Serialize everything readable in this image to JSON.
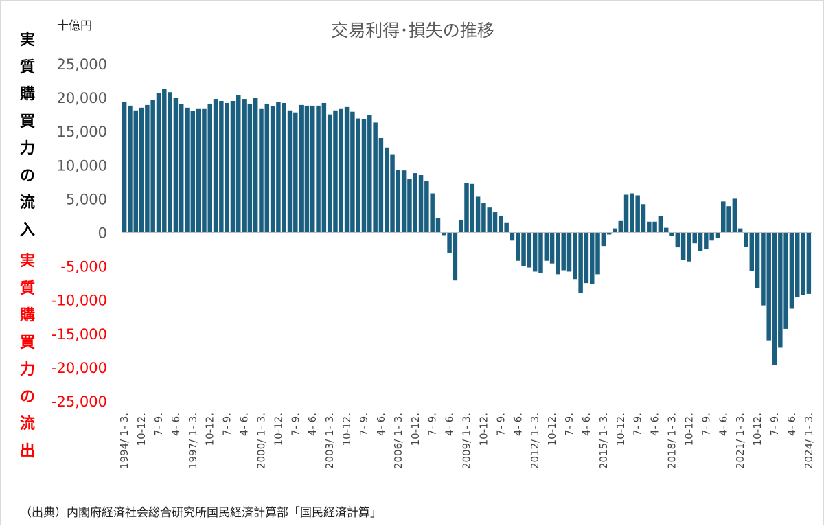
{
  "chart_data": {
    "type": "bar",
    "title": "交易利得･損失の推移",
    "unit_label": "十億円",
    "side_label_positive": [
      "実",
      "質",
      "購",
      "買",
      "力",
      "の",
      "流",
      "入"
    ],
    "side_label_negative": [
      "実",
      "質",
      "購",
      "買",
      "力",
      "の",
      "流",
      "出"
    ],
    "source": "（出典）内閣府経済社会総合研究所国民経済計算部「国民経済計算」",
    "ylim": [
      -25000,
      25000
    ],
    "yticks": [
      25000,
      20000,
      15000,
      10000,
      5000,
      0,
      -5000,
      -10000,
      -15000,
      -20000,
      -25000
    ],
    "ytick_labels": [
      "25,000",
      "20,000",
      "15,000",
      "10,000",
      "5,000",
      "0",
      "-5,000",
      "-10,000",
      "-15,000",
      "-20,000",
      "-25,000"
    ],
    "bar_color": "#1a5e80",
    "positive_tick_color": "#595959",
    "negative_tick_color": "#ff0000",
    "grid": false,
    "xtick_labels": [
      "1994/ 1- 3.",
      "10-12.",
      "7- 9.",
      "4- 6.",
      "1997/ 1- 3.",
      "10-12.",
      "7- 9.",
      "4- 6.",
      "2000/ 1- 3.",
      "10-12.",
      "7- 9.",
      "4- 6.",
      "2003/ 1- 3.",
      "10-12.",
      "7- 9.",
      "4- 6.",
      "2006/ 1- 3.",
      "10-12.",
      "7- 9.",
      "4- 6.",
      "2009/ 1- 3.",
      "10-12.",
      "7- 9.",
      "4- 6.",
      "2012/ 1- 3.",
      "10-12.",
      "7- 9.",
      "4- 6.",
      "2015/ 1- 3.",
      "10-12.",
      "7- 9.",
      "4- 6.",
      "2018/ 1- 3.",
      "10-12.",
      "7- 9.",
      "4- 6.",
      "2021/ 1- 3.",
      "10-12.",
      "7- 9.",
      "4- 6.",
      "2024/ 1- 3."
    ],
    "values": [
      19400,
      18800,
      18100,
      18500,
      18900,
      19700,
      20700,
      21300,
      20800,
      20000,
      19000,
      18500,
      18000,
      18300,
      18300,
      19100,
      19800,
      19500,
      19200,
      19500,
      20400,
      19800,
      19000,
      20000,
      18300,
      19100,
      18700,
      19300,
      19200,
      18100,
      17800,
      18900,
      18800,
      18800,
      18800,
      19200,
      17500,
      18100,
      18300,
      18600,
      17900,
      16900,
      16800,
      17400,
      16300,
      14000,
      12600,
      11600,
      9300,
      9200,
      7900,
      8800,
      8500,
      7600,
      5800,
      2100,
      -400,
      -3000,
      -7100,
      1800,
      7300,
      7200,
      5300,
      4400,
      3700,
      3000,
      2500,
      1400,
      -1200,
      -4200,
      -5000,
      -5200,
      -5800,
      -6000,
      -4200,
      -4600,
      -6200,
      -5600,
      -5800,
      -7000,
      -9000,
      -7500,
      -7600,
      -6200,
      -2000,
      -300,
      600,
      1700,
      5600,
      5800,
      5500,
      4200,
      1600,
      1600,
      2400,
      700,
      -500,
      -2200,
      -4100,
      -4300,
      -1600,
      -2800,
      -2500,
      -1200,
      -800,
      4600,
      3900,
      5000,
      600,
      -2100,
      -5700,
      -8200,
      -10800,
      -16000,
      -19700,
      -17100,
      -14300,
      -11300,
      -9600,
      -9300,
      -9100
    ]
  }
}
